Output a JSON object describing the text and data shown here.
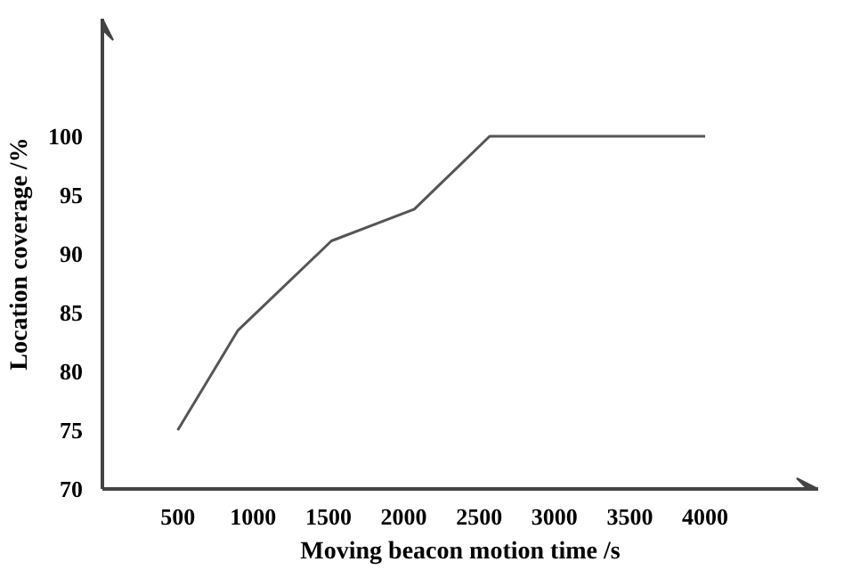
{
  "chart_data": {
    "type": "line",
    "xlabel": "Moving beacon motion time /s",
    "ylabel": "Location coverage /%",
    "x": [
      500,
      900,
      1520,
      2070,
      2570,
      4000
    ],
    "series": [
      {
        "color": "#555555",
        "values": [
          75,
          83.5,
          91.1,
          93.8,
          100,
          100
        ]
      }
    ],
    "xlim": [
      0,
      4750
    ],
    "ylim": [
      70,
      110
    ],
    "xticks": [
      500,
      1000,
      1500,
      2000,
      2500,
      3000,
      3500,
      4000
    ],
    "yticks": [
      70,
      75,
      80,
      85,
      90,
      95,
      100
    ],
    "grid": false,
    "marker": "none",
    "line_style": "solid"
  }
}
